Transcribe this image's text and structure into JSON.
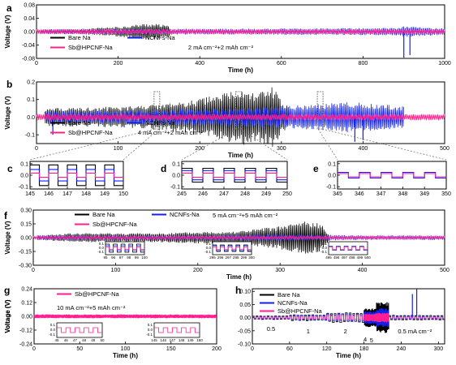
{
  "colors": {
    "bare_na": "#000000",
    "ncnfs_na": "#1020f0",
    "sb_hpcnf_na": "#ff1f8e",
    "axis": "#000000",
    "guide": "#666666"
  },
  "chart_data": [
    {
      "panel": "a",
      "type": "line",
      "ylabel": "Voltage (V)",
      "xlabel": "Time (h)",
      "xlim": [
        0,
        1000
      ],
      "ylim": [
        -0.08,
        0.08
      ],
      "xticks": [
        0,
        200,
        400,
        600,
        800,
        1000
      ],
      "yticks": [
        0.08,
        0.04,
        0.0,
        -0.04,
        -0.08
      ],
      "ytick_labels": [
        "0.08",
        "0.04",
        "0.00",
        "-0.04",
        "-0.08"
      ],
      "legend": [
        "Bare Na",
        "NCNFs-Na",
        "Sb@HPCNF-Na"
      ],
      "annotation": "2 mA cm⁻²+2 mAh cm⁻²",
      "series": [
        {
          "name": "Bare Na",
          "envelope_x": [
            10,
            100,
            200,
            270,
            300,
            320,
            330
          ],
          "envelope_amp": [
            0.005,
            0.006,
            0.012,
            0.02,
            0.018,
            0.015,
            0.008
          ]
        },
        {
          "name": "NCNFs-Na",
          "envelope_x": [
            10,
            300,
            500,
            700,
            880,
            900,
            920,
            1000
          ],
          "envelope_amp": [
            0.006,
            0.007,
            0.007,
            0.008,
            0.009,
            0.013,
            0.012,
            0.008
          ],
          "spikes": [
            {
              "x": 900,
              "y": -0.078
            },
            {
              "x": 915,
              "y": -0.07
            }
          ]
        },
        {
          "name": "Sb@HPCNF-Na",
          "envelope_x": [
            0,
            1000
          ],
          "envelope_amp": [
            0.006,
            0.006
          ]
        }
      ]
    },
    {
      "panel": "b",
      "type": "line",
      "ylabel": "Voltage (V)",
      "xlabel": "Time (h)",
      "xlim": [
        0,
        500
      ],
      "ylim": [
        -0.15,
        0.2
      ],
      "xticks": [
        0,
        100,
        200,
        300,
        400,
        500
      ],
      "yticks": [
        0.2,
        0.1,
        0.0,
        -0.1
      ],
      "ytick_labels": [
        "0.2",
        "0.1",
        "0.0",
        "-0.1"
      ],
      "legend": [
        "Bare Na",
        "NCNFs-Na",
        "Sb@HPCNF-Na"
      ],
      "annotation": "4 mA cm⁻²+2 mAh cm⁻²",
      "series": [
        {
          "name": "Bare Na",
          "envelope_x": [
            10,
            60,
            120,
            180,
            220,
            250,
            270,
            290,
            300,
            310
          ],
          "envelope_amp": [
            0.04,
            0.045,
            0.05,
            0.07,
            0.1,
            0.13,
            0.11,
            0.14,
            0.08,
            0.04
          ]
        },
        {
          "name": "NCNFs-Na",
          "envelope_x": [
            10,
            100,
            200,
            300,
            350,
            380,
            420,
            450
          ],
          "envelope_amp": [
            0.03,
            0.03,
            0.04,
            0.05,
            0.06,
            0.07,
            0.06,
            0.05
          ],
          "spikes": [
            {
              "x": 20,
              "y": -0.1
            },
            {
              "x": 390,
              "y": -0.14
            },
            {
              "x": 400,
              "y": -0.13
            }
          ]
        },
        {
          "name": "Sb@HPCNF-Na",
          "envelope_x": [
            0,
            500
          ],
          "envelope_amp": [
            0.015,
            0.015
          ]
        }
      ]
    },
    {
      "panel": "c",
      "type": "line",
      "xlim": [
        145,
        150
      ],
      "ylim": [
        -0.12,
        0.12
      ],
      "xticks": [
        145,
        146,
        147,
        148,
        149,
        150
      ],
      "yticks": [
        0.1,
        0.0,
        -0.1
      ],
      "ytick_labels": [
        "0.1",
        "0.0",
        "-0.1"
      ],
      "series": [
        {
          "name": "Bare Na",
          "amplitude": 0.09,
          "period_h": 1
        },
        {
          "name": "NCNFs-Na",
          "amplitude": 0.05,
          "period_h": 1
        },
        {
          "name": "Sb@HPCNF-Na",
          "amplitude": 0.018,
          "period_h": 1
        }
      ]
    },
    {
      "panel": "d",
      "type": "line",
      "xlim": [
        245,
        250
      ],
      "ylim": [
        -0.12,
        0.12
      ],
      "xticks": [
        245,
        246,
        247,
        248,
        249,
        250
      ],
      "yticks": [
        0.1,
        0.0,
        -0.1
      ],
      "ytick_labels": [
        "0.1",
        "0.0",
        "-0.1"
      ],
      "series": [
        {
          "name": "Bare Na",
          "amplitude": 0.06,
          "period_h": 1
        },
        {
          "name": "NCNFs-Na",
          "amplitude": 0.04,
          "period_h": 1
        },
        {
          "name": "Sb@HPCNF-Na",
          "amplitude": 0.018,
          "period_h": 1
        }
      ]
    },
    {
      "panel": "e",
      "type": "line",
      "xlim": [
        345,
        350
      ],
      "ylim": [
        -0.12,
        0.12
      ],
      "xticks": [
        345,
        346,
        347,
        348,
        349,
        350
      ],
      "yticks": [
        0.1,
        0.0,
        -0.1
      ],
      "ytick_labels": [
        "0.1",
        "0.0",
        "-0.1"
      ],
      "series": [
        {
          "name": "NCNFs-Na",
          "amplitude": 0.025,
          "period_h": 1
        },
        {
          "name": "Sb@HPCNF-Na",
          "amplitude": 0.015,
          "period_h": 1
        }
      ]
    },
    {
      "panel": "f",
      "type": "line",
      "ylabel": "Voltage (V)",
      "xlabel": "Time (h)",
      "xlim": [
        0,
        500
      ],
      "ylim": [
        -0.3,
        0.3
      ],
      "xticks": [
        0,
        100,
        200,
        300,
        400,
        500
      ],
      "yticks": [
        0.3,
        0.15,
        0.0,
        -0.15,
        -0.3
      ],
      "ytick_labels": [
        "0.30",
        "0.15",
        "0.00",
        "-0.15",
        "-0.30"
      ],
      "legend": [
        "Bare Na",
        "NCNFs-Na",
        "Sb@HPCNF-Na"
      ],
      "annotation": "5 mA cm⁻²+5 mAh cm⁻²",
      "series": [
        {
          "name": "Bare Na",
          "envelope_x": [
            5,
            50,
            150,
            250,
            300,
            330,
            350,
            360
          ],
          "envelope_amp": [
            0.02,
            0.04,
            0.04,
            0.06,
            0.1,
            0.15,
            0.12,
            0.03
          ]
        },
        {
          "name": "NCNFs-Na",
          "envelope_x": [
            5,
            100,
            200,
            300,
            400,
            500
          ],
          "envelope_amp": [
            0.02,
            0.02,
            0.02,
            0.03,
            0.02,
            0.02
          ]
        },
        {
          "name": "Sb@HPCNF-Na",
          "envelope_x": [
            0,
            500
          ],
          "envelope_amp": [
            0.014,
            0.014
          ]
        }
      ],
      "insets": [
        {
          "xticks": [
            "95",
            "96",
            "97",
            "98",
            "99",
            "100"
          ],
          "yticks": [
            "0.1",
            "0.0",
            "-0.1"
          ]
        },
        {
          "xticks": [
            "295",
            "296",
            "297",
            "298",
            "299",
            "300"
          ],
          "yticks": [
            "0.1",
            "0.0",
            "-0.1"
          ]
        },
        {
          "xticks": [
            "495",
            "496",
            "497",
            "498",
            "499",
            "500"
          ],
          "yticks": [
            "0.1",
            "0.0",
            "-0.1"
          ]
        }
      ]
    },
    {
      "panel": "g",
      "type": "line",
      "ylabel": "Voltage (V)",
      "xlabel": "Time (h)",
      "xlim": [
        0,
        200
      ],
      "ylim": [
        -0.24,
        0.24
      ],
      "xticks": [
        0,
        50,
        100,
        150,
        200
      ],
      "yticks": [
        0.24,
        0.12,
        0.0,
        -0.12,
        -0.24
      ],
      "ytick_labels": [
        "0.24",
        "0.12",
        "0.00",
        "-0.12",
        "-0.24"
      ],
      "legend": [
        "Sb@HPCNF-Na"
      ],
      "annotation": "10 mA cm⁻²+5 mAh cm⁻²",
      "series": [
        {
          "name": "Sb@HPCNF-Na",
          "envelope_x": [
            0,
            200
          ],
          "envelope_amp": [
            0.014,
            0.014
          ]
        }
      ],
      "insets": [
        {
          "xticks": [
            "45",
            "46",
            "47",
            "48",
            "49",
            "50"
          ],
          "yticks": [
            "0.1",
            "0.0",
            "-0.1"
          ]
        },
        {
          "xticks": [
            "145",
            "146",
            "147",
            "148",
            "149",
            "150"
          ],
          "yticks": [
            "0.1",
            "0.0",
            "-0.1"
          ]
        }
      ]
    },
    {
      "panel": "h",
      "type": "line",
      "ylabel": "Voltage (V)",
      "xlabel": "Time (h)",
      "xlim": [
        0,
        310
      ],
      "ylim": [
        -0.1,
        0.11
      ],
      "xticks": [
        0,
        60,
        120,
        180,
        240,
        300
      ],
      "yticks": [
        0.1,
        0.05,
        0.0,
        -0.05,
        -0.1
      ],
      "ytick_labels": [
        "0.10",
        "0.05",
        "0.00",
        "-0.05",
        "-0.10"
      ],
      "legend": [
        "Bare Na",
        "NCNFs-Na",
        "Sb@HPCNF-Na"
      ],
      "annotations": [
        "0.5",
        "1",
        "2",
        "4",
        "5",
        "0.5 mA cm⁻²"
      ],
      "current_steps_mA_cm2": [
        0.5,
        1,
        2,
        4,
        5,
        0.5
      ],
      "step_ranges_h": [
        [
          0,
          60
        ],
        [
          60,
          120
        ],
        [
          120,
          180
        ],
        [
          180,
          200
        ],
        [
          200,
          220
        ],
        [
          220,
          310
        ]
      ],
      "series": [
        {
          "name": "Bare Na",
          "step_amp": [
            0.006,
            0.01,
            0.016,
            0.03,
            0.05,
            0.008
          ]
        },
        {
          "name": "NCNFs-Na",
          "step_amp": [
            0.004,
            0.008,
            0.012,
            0.02,
            0.03,
            0.005
          ],
          "spikes": [
            {
              "x": 265,
              "y": 0.11
            },
            {
              "x": 258,
              "y": 0.09
            }
          ]
        },
        {
          "name": "Sb@HPCNF-Na",
          "step_amp": [
            0.002,
            0.004,
            0.007,
            0.012,
            0.015,
            0.002
          ]
        }
      ]
    }
  ]
}
